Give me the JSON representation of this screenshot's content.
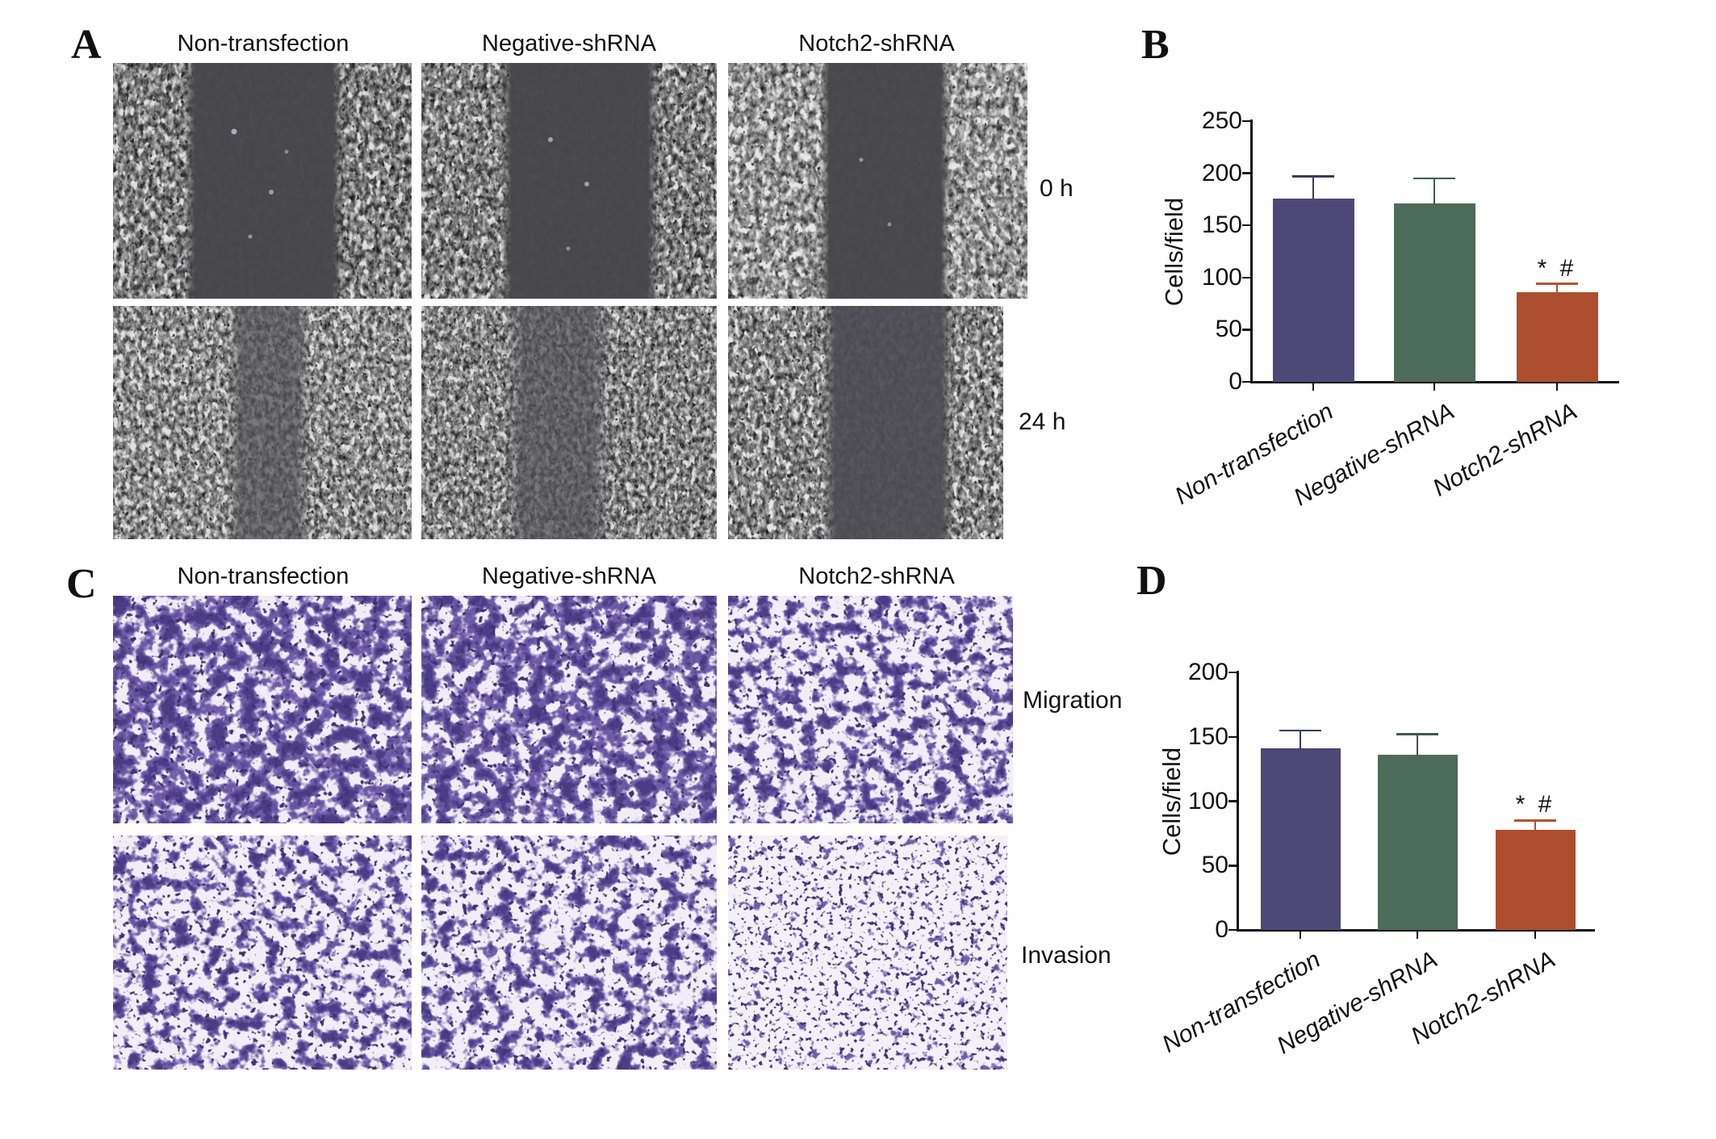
{
  "figure": {
    "panel_a": {
      "label": "A",
      "assay": "wound-healing scratch micrographs",
      "column_headers": [
        "Non-transfection",
        "Negative-shRNA",
        "Notch2-shRNA"
      ],
      "row_labels": [
        "0 h",
        "24 h"
      ],
      "tiles": [
        {
          "row": "0 h",
          "column": "Non-transfection",
          "wound_gap": [
            0.26,
            0.75
          ]
        },
        {
          "row": "0 h",
          "column": "Negative-shRNA",
          "wound_gap": [
            0.29,
            0.78
          ]
        },
        {
          "row": "0 h",
          "column": "Notch2-shRNA",
          "wound_gap": [
            0.33,
            0.72
          ]
        },
        {
          "row": "24 h",
          "column": "Non-transfection",
          "wound_gap": [
            0.4,
            0.64
          ]
        },
        {
          "row": "24 h",
          "column": "Negative-shRNA",
          "wound_gap": [
            0.3,
            0.62
          ]
        },
        {
          "row": "24 h",
          "column": "Notch2-shRNA",
          "wound_gap": [
            0.36,
            0.8
          ]
        }
      ]
    },
    "panel_c": {
      "label": "C",
      "assay": "transwell crystal-violet micrographs",
      "column_headers": [
        "Non-transfection",
        "Negative-shRNA",
        "Notch2-shRNA"
      ],
      "row_labels": [
        "Migration",
        "Invasion"
      ],
      "tiles": [
        {
          "row": "Migration",
          "column": "Non-transfection",
          "cell_density": "dense"
        },
        {
          "row": "Migration",
          "column": "Negative-shRNA",
          "cell_density": "dense"
        },
        {
          "row": "Migration",
          "column": "Notch2-shRNA",
          "cell_density": "moderate"
        },
        {
          "row": "Invasion",
          "column": "Non-transfection",
          "cell_density": "moderate"
        },
        {
          "row": "Invasion",
          "column": "Negative-shRNA",
          "cell_density": "moderate"
        },
        {
          "row": "Invasion",
          "column": "Notch2-shRNA",
          "cell_density": "sparse"
        }
      ]
    }
  },
  "chart_data": [
    {
      "id": "B",
      "panel_label": "B",
      "type": "bar",
      "categories": [
        "Non-transfection",
        "Negative-shRNA",
        "Notch2-shRNA"
      ],
      "values": [
        176,
        171,
        86
      ],
      "errors_plus": [
        21,
        24,
        8
      ],
      "title": "",
      "xlabel": "",
      "ylabel": "Cells/field",
      "ylim": [
        0,
        250
      ],
      "yticks": [
        0,
        50,
        100,
        150,
        200,
        250
      ],
      "grid": false,
      "legend": null,
      "bar_colors": [
        "#4e4876",
        "#4c6b58",
        "#ac4e2e"
      ],
      "error_colors": [
        "#3c3a62",
        "#3e5a4a",
        "#b5512e"
      ],
      "significance": {
        "bar_index": 2,
        "text": "* #"
      }
    },
    {
      "id": "D",
      "panel_label": "D",
      "type": "bar",
      "categories": [
        "Non-transfection",
        "Negative-shRNA",
        "Notch2-shRNA"
      ],
      "values": [
        141,
        136,
        78
      ],
      "errors_plus": [
        14,
        16,
        7
      ],
      "title": "",
      "xlabel": "",
      "ylabel": "Cells/field",
      "ylim": [
        0,
        200
      ],
      "yticks": [
        0,
        50,
        100,
        150,
        200
      ],
      "grid": false,
      "legend": null,
      "bar_colors": [
        "#4e4876",
        "#4c6b58",
        "#ac4e2e"
      ],
      "error_colors": [
        "#3c3a62",
        "#3e5a4a",
        "#b5512e"
      ],
      "significance": {
        "bar_index": 2,
        "text": "* #"
      }
    }
  ]
}
